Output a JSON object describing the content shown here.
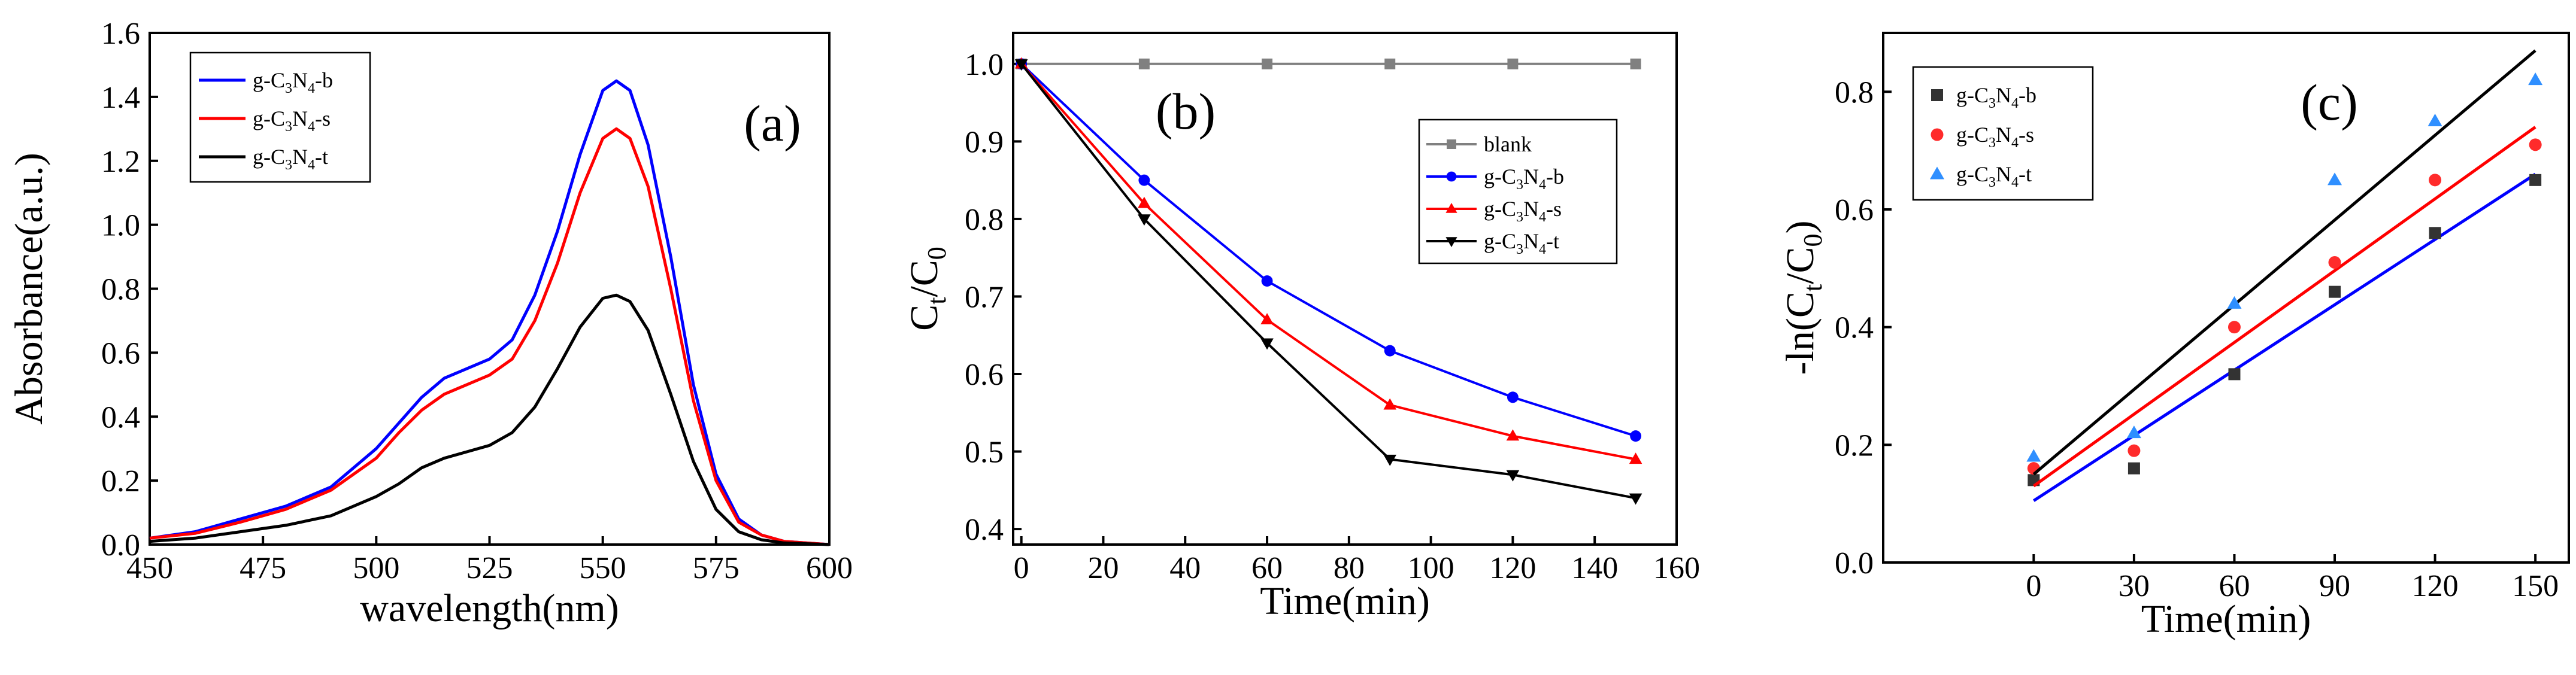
{
  "colors": {
    "b": "#0000ff",
    "s": "#ff0000",
    "t": "#000000",
    "blank": "#808080",
    "c_b": "#333333",
    "c_s": "#ff2b2b",
    "c_t": "#2f8fff"
  },
  "chart_data": [
    {
      "id": "a",
      "type": "line",
      "panel_label": "(a)",
      "xlabel": "wavelength(nm)",
      "ylabel": "Absorbance(a.u.)",
      "xlim": [
        450,
        600
      ],
      "ylim": [
        0,
        1.6
      ],
      "xticks": [
        "450",
        "475",
        "500",
        "525",
        "550",
        "575",
        "600"
      ],
      "yticks": [
        "0.0",
        "0.2",
        "0.4",
        "0.6",
        "0.8",
        "1.0",
        "1.2",
        "1.4",
        "1.6"
      ],
      "legend": {
        "position": "top-left",
        "entries": [
          "g-C3N4-b",
          "g-C3N4-s",
          "g-C3N4-t"
        ]
      },
      "series": [
        {
          "name": "g-C3N4-b",
          "x": [
            450,
            460,
            470,
            480,
            490,
            500,
            505,
            510,
            515,
            520,
            525,
            530,
            535,
            540,
            545,
            550,
            553,
            556,
            560,
            565,
            570,
            575,
            580,
            585,
            590,
            600
          ],
          "y": [
            0.02,
            0.04,
            0.08,
            0.12,
            0.18,
            0.3,
            0.38,
            0.46,
            0.52,
            0.55,
            0.58,
            0.64,
            0.78,
            0.98,
            1.22,
            1.42,
            1.45,
            1.42,
            1.25,
            0.9,
            0.5,
            0.22,
            0.08,
            0.03,
            0.01,
            0.0
          ]
        },
        {
          "name": "g-C3N4-s",
          "x": [
            450,
            460,
            470,
            480,
            490,
            500,
            505,
            510,
            515,
            520,
            525,
            530,
            535,
            540,
            545,
            550,
            553,
            556,
            560,
            565,
            570,
            575,
            580,
            585,
            590,
            600
          ],
          "y": [
            0.02,
            0.035,
            0.07,
            0.11,
            0.17,
            0.27,
            0.35,
            0.42,
            0.47,
            0.5,
            0.53,
            0.58,
            0.7,
            0.88,
            1.1,
            1.27,
            1.3,
            1.27,
            1.12,
            0.8,
            0.45,
            0.2,
            0.07,
            0.03,
            0.01,
            0.0
          ]
        },
        {
          "name": "g-C3N4-t",
          "x": [
            450,
            460,
            470,
            480,
            490,
            500,
            505,
            510,
            515,
            520,
            525,
            530,
            535,
            540,
            545,
            550,
            553,
            556,
            560,
            565,
            570,
            575,
            580,
            585,
            590,
            600
          ],
          "y": [
            0.01,
            0.02,
            0.04,
            0.06,
            0.09,
            0.15,
            0.19,
            0.24,
            0.27,
            0.29,
            0.31,
            0.35,
            0.43,
            0.55,
            0.68,
            0.77,
            0.78,
            0.76,
            0.67,
            0.47,
            0.26,
            0.11,
            0.04,
            0.015,
            0.005,
            0.0
          ]
        }
      ]
    },
    {
      "id": "b",
      "type": "line",
      "panel_label": "(b)",
      "xlabel": "Time(min)",
      "ylabel": "Ct/C0",
      "xlim": [
        -2,
        160
      ],
      "ylim": [
        0.38,
        1.04
      ],
      "xticks": [
        "0",
        "20",
        "40",
        "60",
        "80",
        "100",
        "120",
        "140",
        "160"
      ],
      "yticks": [
        "0.4",
        "0.5",
        "0.6",
        "0.7",
        "0.8",
        "0.9",
        "1.0"
      ],
      "legend": {
        "position": "center-right",
        "entries": [
          "blank",
          "g-C3N4-b",
          "g-C3N4-s",
          "g-C3N4-t"
        ]
      },
      "series": [
        {
          "name": "blank",
          "marker": "square",
          "x": [
            0,
            30,
            60,
            90,
            120,
            150
          ],
          "y": [
            1.0,
            1.0,
            1.0,
            1.0,
            1.0,
            1.0
          ]
        },
        {
          "name": "g-C3N4-b",
          "marker": "circle",
          "x": [
            0,
            30,
            60,
            90,
            120,
            150
          ],
          "y": [
            1.0,
            0.85,
            0.72,
            0.63,
            0.57,
            0.52
          ]
        },
        {
          "name": "g-C3N4-s",
          "marker": "triangle-up",
          "x": [
            0,
            30,
            60,
            90,
            120,
            150
          ],
          "y": [
            1.0,
            0.82,
            0.67,
            0.56,
            0.52,
            0.49
          ]
        },
        {
          "name": "g-C3N4-t",
          "marker": "triangle-down",
          "x": [
            0,
            30,
            60,
            90,
            120,
            150
          ],
          "y": [
            1.0,
            0.8,
            0.64,
            0.49,
            0.47,
            0.44
          ]
        }
      ]
    },
    {
      "id": "c",
      "type": "scatter",
      "panel_label": "(c)",
      "xlabel": "Time(min)",
      "ylabel": "-ln(Ct/C0)",
      "xlim": [
        -45,
        160
      ],
      "ylim": [
        0,
        0.9
      ],
      "xticks": [
        "0",
        "30",
        "60",
        "90",
        "120",
        "150"
      ],
      "yticks": [
        "0.0",
        "0.2",
        "0.4",
        "0.6",
        "0.8"
      ],
      "legend": {
        "position": "top-left",
        "entries": [
          "g-C3N4-b",
          "g-C3N4-s",
          "g-C3N4-t"
        ]
      },
      "series": [
        {
          "name": "g-C3N4-b",
          "marker": "square",
          "x": [
            0,
            30,
            60,
            90,
            120,
            150
          ],
          "y": [
            0.14,
            0.16,
            0.32,
            0.46,
            0.56,
            0.65
          ],
          "fit": [
            0.105,
            0.66
          ]
        },
        {
          "name": "g-C3N4-s",
          "marker": "circle",
          "x": [
            0,
            30,
            60,
            90,
            120,
            150
          ],
          "y": [
            0.16,
            0.19,
            0.4,
            0.51,
            0.65,
            0.71
          ],
          "fit": [
            0.13,
            0.74
          ]
        },
        {
          "name": "g-C3N4-t",
          "marker": "triangle-up",
          "x": [
            0,
            30,
            60,
            90,
            120,
            150
          ],
          "y": [
            0.18,
            0.22,
            0.44,
            0.65,
            0.75,
            0.82
          ],
          "fit": [
            0.15,
            0.87
          ]
        }
      ]
    }
  ]
}
